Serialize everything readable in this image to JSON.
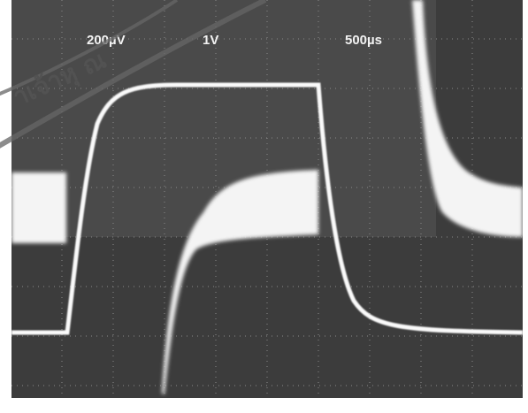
{
  "scope": {
    "labels": {
      "ch1_scale": "200µV",
      "ch2_scale": "1V",
      "timebase": "500µs"
    },
    "stamp_text": "าเจ้าหุ ณ"
  }
}
